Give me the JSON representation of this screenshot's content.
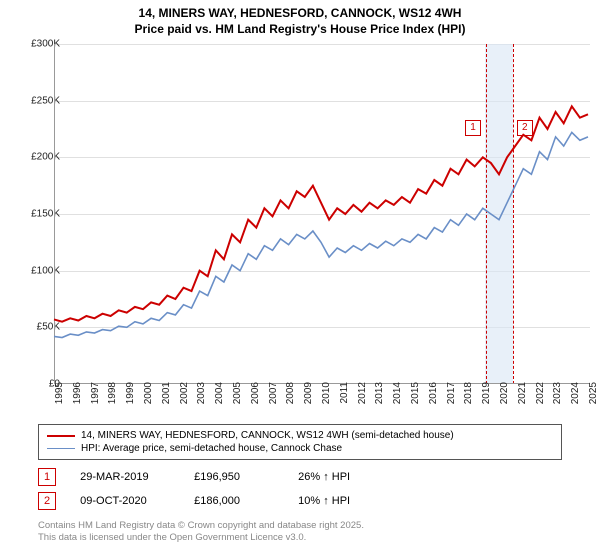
{
  "title_line1": "14, MINERS WAY, HEDNESFORD, CANNOCK, WS12 4WH",
  "title_line2": "Price paid vs. HM Land Registry's House Price Index (HPI)",
  "chart": {
    "type": "line",
    "background_color": "#ffffff",
    "grid_color": "#e0e0e0",
    "axis_color": "#999999",
    "label_fontsize": 10,
    "label_color": "#222222",
    "x_years": [
      "1995",
      "1996",
      "1997",
      "1998",
      "1999",
      "2000",
      "2001",
      "2002",
      "2003",
      "2004",
      "2005",
      "2006",
      "2007",
      "2008",
      "2009",
      "2010",
      "2011",
      "2012",
      "2013",
      "2014",
      "2015",
      "2016",
      "2017",
      "2018",
      "2019",
      "2020",
      "2021",
      "2022",
      "2023",
      "2024",
      "2025"
    ],
    "y_ticks": [
      0,
      50,
      100,
      150,
      200,
      250,
      300
    ],
    "y_tick_labels": [
      "£0",
      "£50K",
      "£100K",
      "£150K",
      "£200K",
      "£250K",
      "£300K"
    ],
    "ylim": [
      0,
      300
    ],
    "series": [
      {
        "name": "property",
        "color": "#cc0000",
        "width": 2,
        "values": [
          57,
          55,
          58,
          56,
          60,
          58,
          62,
          60,
          65,
          63,
          68,
          66,
          72,
          70,
          78,
          75,
          85,
          82,
          100,
          95,
          118,
          110,
          132,
          125,
          145,
          138,
          155,
          148,
          162,
          155,
          170,
          165,
          175,
          160,
          145,
          155,
          150,
          158,
          152,
          160,
          155,
          162,
          158,
          165,
          160,
          172,
          168,
          180,
          175,
          190,
          185,
          198,
          192,
          200,
          195,
          185,
          200,
          210,
          220,
          215,
          235,
          225,
          240,
          230,
          245,
          235,
          238
        ]
      },
      {
        "name": "hpi",
        "color": "#6a8fc7",
        "width": 1.6,
        "values": [
          42,
          41,
          44,
          43,
          46,
          45,
          48,
          47,
          51,
          50,
          55,
          53,
          58,
          56,
          63,
          61,
          70,
          67,
          82,
          78,
          95,
          90,
          105,
          100,
          115,
          110,
          122,
          118,
          128,
          123,
          132,
          128,
          135,
          125,
          112,
          120,
          116,
          122,
          118,
          124,
          120,
          126,
          122,
          128,
          125,
          132,
          128,
          138,
          134,
          145,
          140,
          150,
          145,
          155,
          150,
          145,
          160,
          175,
          190,
          185,
          205,
          198,
          218,
          210,
          222,
          215,
          218
        ]
      }
    ]
  },
  "markers": {
    "band_start_year": 2019.2,
    "band_end_year": 2020.8,
    "line1_year": 2019.25,
    "line2_year": 2020.77,
    "line_color": "#cc0000",
    "dash": "3,3",
    "badges": [
      {
        "num": "1",
        "year": 2019.0,
        "y": 120,
        "border": "#cc0000"
      },
      {
        "num": "2",
        "year": 2020.9,
        "y": 120,
        "border": "#cc0000"
      }
    ]
  },
  "legend": {
    "items": [
      {
        "label": "14, MINERS WAY, HEDNESFORD, CANNOCK, WS12 4WH (semi-detached house)",
        "color": "#cc0000",
        "width": 2
      },
      {
        "label": "HPI: Average price, semi-detached house, Cannock Chase",
        "color": "#6a8fc7",
        "width": 1.6
      }
    ]
  },
  "sales": [
    {
      "num": "1",
      "border": "#cc0000",
      "date": "29-MAR-2019",
      "price": "£196,950",
      "delta": "26% ↑ HPI"
    },
    {
      "num": "2",
      "border": "#cc0000",
      "date": "09-OCT-2020",
      "price": "£186,000",
      "delta": "10% ↑ HPI"
    }
  ],
  "disclaimer_line1": "Contains HM Land Registry data © Crown copyright and database right 2025.",
  "disclaimer_line2": "This data is licensed under the Open Government Licence v3.0."
}
